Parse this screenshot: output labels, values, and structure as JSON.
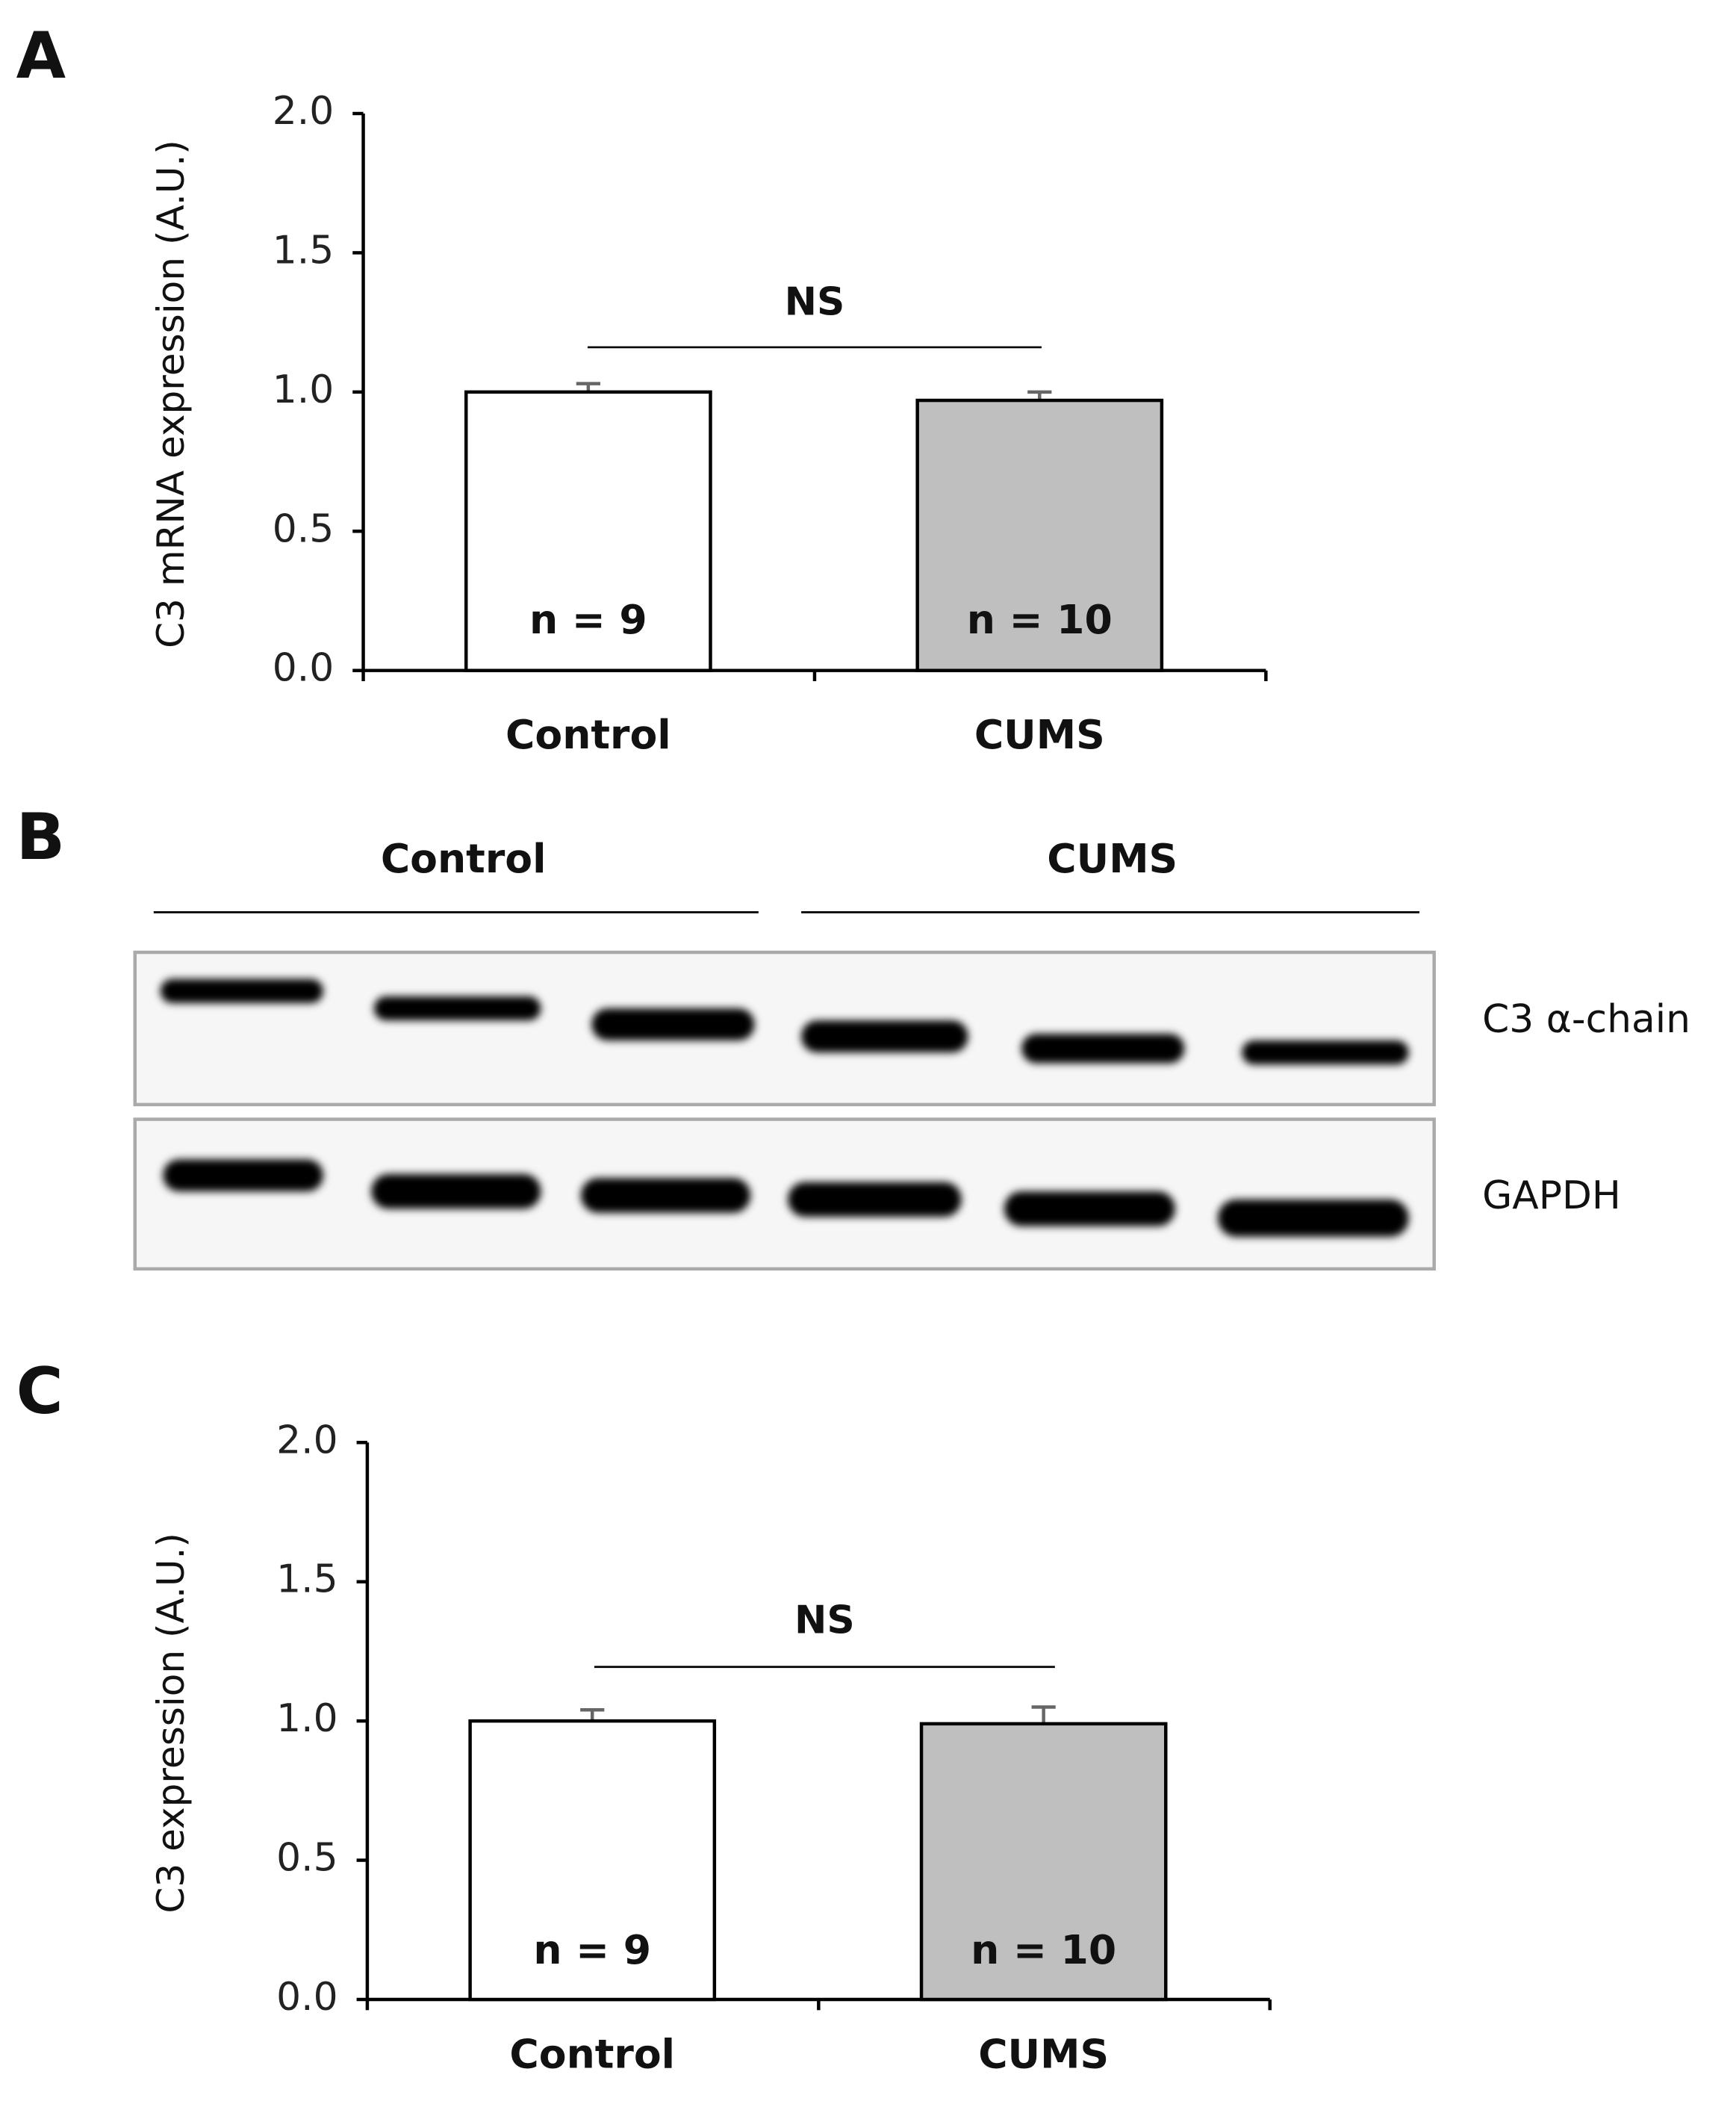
{
  "chart_data": [
    {
      "type": "bar",
      "panel_label": "A",
      "ylabel": "C3 mRNA expression (A.U.)",
      "categories": [
        "Control",
        "CUMS"
      ],
      "values": [
        1.0,
        0.97
      ],
      "errors": [
        0.03,
        0.03
      ],
      "colors": [
        "#ffffff",
        "#bfbfbf"
      ],
      "bar_labels": [
        "n = 9",
        "n = 10"
      ],
      "significance": "NS",
      "ylim": [
        0,
        2
      ],
      "yticks": [
        {
          "value": 0,
          "label": "0.0"
        },
        {
          "value": 0.5,
          "label": "0.5"
        },
        {
          "value": 1,
          "label": "1.0"
        },
        {
          "value": 1.5,
          "label": "1.5"
        },
        {
          "value": 2,
          "label": "2.0"
        }
      ]
    },
    {
      "type": "bar",
      "panel_label": "C",
      "ylabel": "C3 expression (A.U.)",
      "categories": [
        "Control",
        "CUMS"
      ],
      "values": [
        1.0,
        0.99
      ],
      "errors": [
        0.04,
        0.06
      ],
      "colors": [
        "#ffffff",
        "#bfbfbf"
      ],
      "bar_labels": [
        "n = 9",
        "n = 10"
      ],
      "significance": "NS",
      "ylim": [
        0,
        2
      ],
      "yticks": [
        {
          "value": 0,
          "label": "0.0"
        },
        {
          "value": 0.5,
          "label": "0.5"
        },
        {
          "value": 1,
          "label": "1.0"
        },
        {
          "value": 1.5,
          "label": "1.5"
        },
        {
          "value": 2,
          "label": "2.0"
        }
      ]
    }
  ],
  "blot": {
    "panel_label": "B",
    "groups": [
      "Control",
      "CUMS"
    ],
    "rows": [
      "C3 α-chain",
      "GAPDH"
    ]
  }
}
